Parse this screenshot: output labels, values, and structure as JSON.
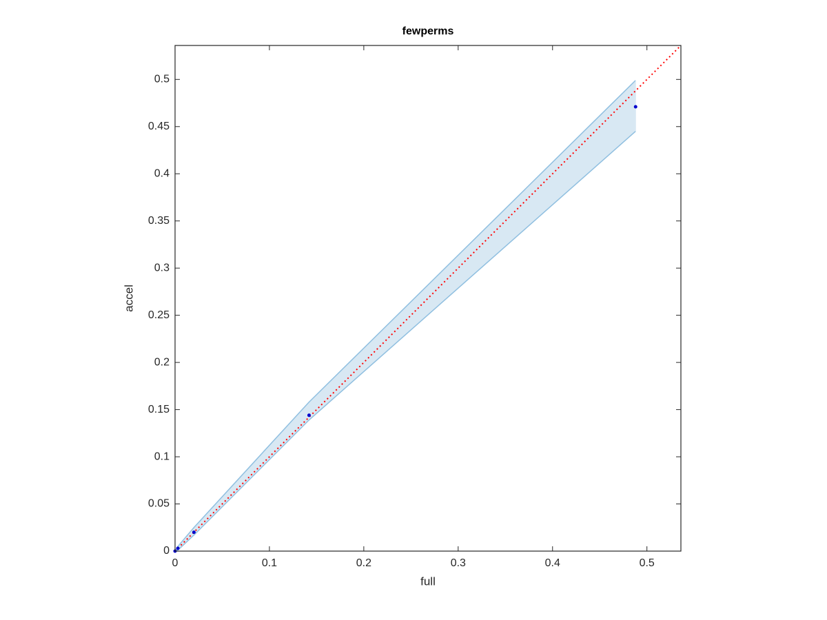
{
  "chart_data": {
    "type": "scatter",
    "title": "fewperms",
    "xlabel": "full",
    "ylabel": "accel",
    "x": [
      0,
      0.003,
      0.02,
      0.142,
      0.488
    ],
    "series": [
      {
        "color": "#0000cc",
        "values": [
          0,
          0.003,
          0.02,
          0.144,
          0.471
        ]
      }
    ],
    "band": {
      "color": "#8fbfe0",
      "fill": "#d8e8f3",
      "x": [
        0,
        0.003,
        0.02,
        0.142,
        0.488
      ],
      "upper": [
        0,
        0.005,
        0.025,
        0.158,
        0.499
      ],
      "lower": [
        0,
        0.001,
        0.017,
        0.139,
        0.445
      ]
    },
    "reference_line": {
      "color": "#ff0000",
      "x": [
        0,
        0.536
      ],
      "y": [
        0,
        0.536
      ]
    },
    "xlim": [
      0,
      0.536
    ],
    "ylim": [
      0,
      0.536
    ],
    "xticks": [
      0,
      0.1,
      0.2,
      0.3,
      0.4,
      0.5
    ],
    "yticks": [
      0,
      0.05,
      0.1,
      0.15,
      0.2,
      0.25,
      0.3,
      0.35,
      0.4,
      0.45,
      0.5
    ]
  }
}
